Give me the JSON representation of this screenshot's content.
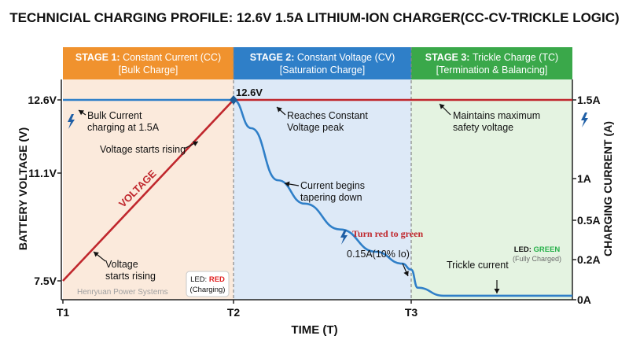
{
  "title": "TECHNICIAL CHARGING PROFILE: 12.6V 1.5A LITHIUM-ION CHARGER(CC-CV-TRICKLE LOGIC)",
  "stages": [
    {
      "label": "STAGE 1:",
      "name": "Constant Current (CC)",
      "sub": "[Bulk Charge]",
      "color": "#f0922e",
      "bg": "#fbeadc"
    },
    {
      "label": "STAGE 2:",
      "name": "Constant Voltage (CV)",
      "sub": "[Saturation Charge]",
      "color": "#2f7fc8",
      "bg": "#dde9f7"
    },
    {
      "label": "STAGE 3:",
      "name": "Trickle Charge (TC)",
      "sub": "[Termination & Balancing]",
      "color": "#3aa84a",
      "bg": "#e4f3e1"
    }
  ],
  "chart_data": {
    "type": "line",
    "title": "TECHNICIAL CHARGING PROFILE: 12.6V 1.5A LITHIUM-ION CHARGER(CC-CV-TRICKLE LOGIC)",
    "xlabel": "TIME (T)",
    "ylabel_left": "BATTERY VOLTAGE (V)",
    "ylabel_right": "CHARGING CURRENT (A)",
    "x_ticks": [
      "T1",
      "T2",
      "T3"
    ],
    "y_left_ticks": [
      "12.6V",
      "11.1V",
      "7.5V"
    ],
    "y_left_values": [
      12.6,
      11.1,
      7.5
    ],
    "y_right_ticks": [
      "1.5A",
      "1A",
      "0.5A",
      "0.2A",
      "0A"
    ],
    "y_right_values": [
      1.5,
      1.0,
      0.5,
      0.2,
      0.0
    ],
    "voltage_color": "#c0272d",
    "current_color": "#2f7fc8",
    "series": [
      {
        "name": "VOLTAGE",
        "axis": "left",
        "x": [
          0,
          1,
          2,
          2.5
        ],
        "y": [
          7.5,
          12.6,
          12.6,
          12.6
        ]
      },
      {
        "name": "",
        "axis": "right",
        "x": [
          0,
          1,
          1.1,
          1.25,
          1.4,
          1.6,
          1.8,
          1.95,
          2.0,
          2.02,
          2.1,
          2.5
        ],
        "y": [
          1.5,
          1.5,
          1.32,
          0.98,
          0.7,
          0.43,
          0.26,
          0.18,
          0.15,
          0.06,
          0.02,
          0.02
        ]
      }
    ],
    "annotations": {
      "bulk": "Bulk Current\ncharging at 1.5A",
      "rising_top": "Voltage starts rising",
      "rising_bottom": "Voltage\nstarts rising",
      "voltage_label": "VOLTAGE",
      "peak_value": "12.6V",
      "reaches": "Reaches Constant\nVoltage peak",
      "tapering": "Current begins\ntapering down",
      "turn": "Turn red to green",
      "cutoff": "0.15A(10% Io)",
      "maintains": "Maintains maximum\nsafety voltage",
      "trickle": "Trickle current"
    },
    "led_red": {
      "prefix": "LED: ",
      "color_word": "RED",
      "state": "(Charging)"
    },
    "led_green": {
      "prefix": "LED: ",
      "color_word": "GREEN",
      "state": "(Fully Charged)"
    },
    "watermark": "Henryuan Power Systems"
  }
}
